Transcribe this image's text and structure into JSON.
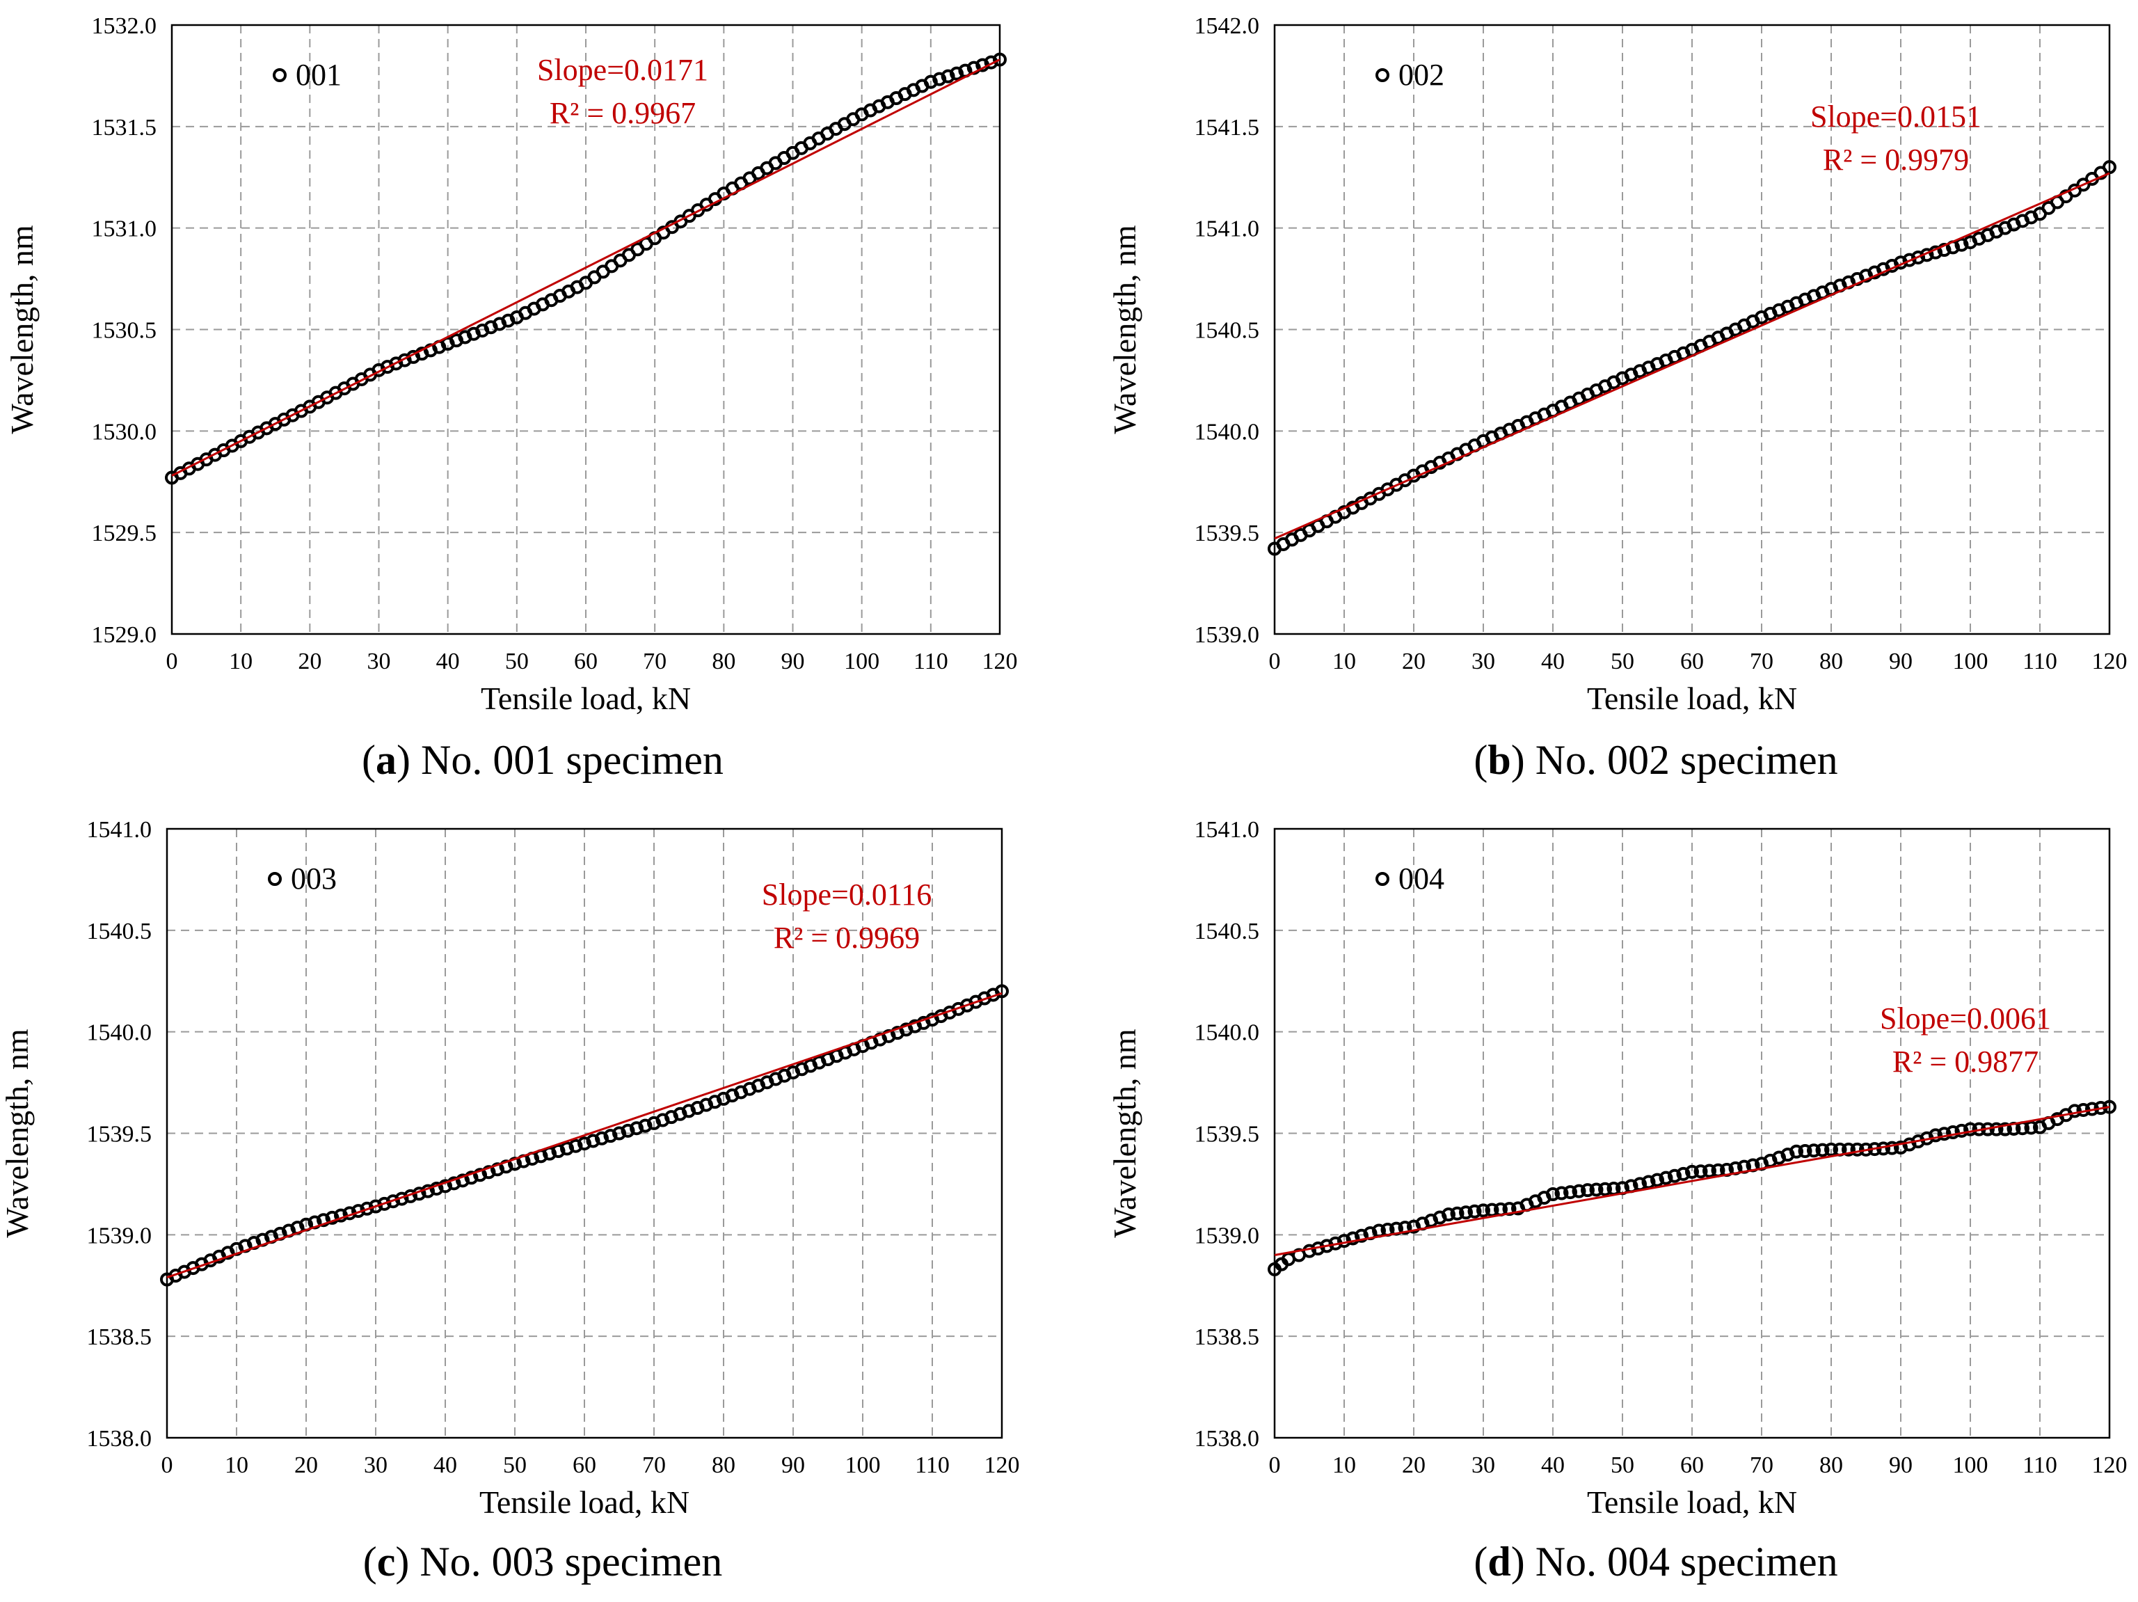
{
  "figure": {
    "captions": [
      {
        "letter": "a",
        "text": "No. 001 specimen"
      },
      {
        "letter": "b",
        "text": "No. 002 specimen"
      },
      {
        "letter": "c",
        "text": "No. 003 specimen"
      },
      {
        "letter": "d",
        "text": "No. 004 specimen"
      }
    ]
  },
  "chart_data": [
    {
      "type": "scatter",
      "xlabel": "Tensile load, kN",
      "ylabel": "Wavelength, nm",
      "xlim": [
        0,
        120
      ],
      "ylim": [
        1529.0,
        1532.0
      ],
      "xticks": [
        0,
        10,
        20,
        30,
        40,
        50,
        60,
        70,
        80,
        90,
        100,
        110,
        120
      ],
      "yticks": [
        1529.0,
        1529.5,
        1530.0,
        1530.5,
        1531.0,
        1531.5,
        1532.0
      ],
      "grid": true,
      "legend": {
        "position": "top-left",
        "label": "001"
      },
      "marker": {
        "shape": "open-circle",
        "color": "#000000"
      },
      "trendline": {
        "color": "#c00000",
        "slope_label": "Slope=0.0171",
        "r2_label": "R² = 0.9967",
        "x": [
          0,
          120
        ],
        "y": [
          1529.78,
          1531.83
        ]
      },
      "series": [
        {
          "name": "001",
          "x": [
            0,
            10,
            20,
            30,
            40,
            50,
            60,
            70,
            80,
            90,
            100,
            110,
            120
          ],
          "y": [
            1529.77,
            1529.95,
            1530.12,
            1530.3,
            1530.43,
            1530.56,
            1530.73,
            1530.95,
            1531.17,
            1531.37,
            1531.56,
            1531.72,
            1531.83
          ]
        }
      ]
    },
    {
      "type": "scatter",
      "xlabel": "Tensile load, kN",
      "ylabel": "Wavelength, nm",
      "xlim": [
        0,
        120
      ],
      "ylim": [
        1539.0,
        1542.0
      ],
      "xticks": [
        0,
        10,
        20,
        30,
        40,
        50,
        60,
        70,
        80,
        90,
        100,
        110,
        120
      ],
      "yticks": [
        1539.0,
        1539.5,
        1540.0,
        1540.5,
        1541.0,
        1541.5,
        1542.0
      ],
      "grid": true,
      "legend": {
        "position": "top-left",
        "label": "002"
      },
      "marker": {
        "shape": "open-circle",
        "color": "#000000"
      },
      "trendline": {
        "color": "#c00000",
        "slope_label": "Slope=0.0151",
        "r2_label": "R² = 0.9979",
        "x": [
          0,
          120
        ],
        "y": [
          1539.47,
          1541.27
        ]
      },
      "series": [
        {
          "name": "002",
          "x": [
            0,
            10,
            20,
            30,
            40,
            50,
            60,
            70,
            80,
            90,
            100,
            110,
            120
          ],
          "y": [
            1539.42,
            1539.6,
            1539.78,
            1539.95,
            1540.1,
            1540.26,
            1540.4,
            1540.56,
            1540.7,
            1540.83,
            1540.93,
            1541.07,
            1541.3
          ]
        }
      ]
    },
    {
      "type": "scatter",
      "xlabel": "Tensile load, kN",
      "ylabel": "Wavelength, nm",
      "xlim": [
        0,
        120
      ],
      "ylim": [
        1538.0,
        1541.0
      ],
      "xticks": [
        0,
        10,
        20,
        30,
        40,
        50,
        60,
        70,
        80,
        90,
        100,
        110,
        120
      ],
      "yticks": [
        1538.0,
        1538.5,
        1539.0,
        1539.5,
        1540.0,
        1540.5,
        1541.0
      ],
      "grid": true,
      "legend": {
        "position": "top-left",
        "label": "003"
      },
      "marker": {
        "shape": "open-circle",
        "color": "#000000"
      },
      "trendline": {
        "color": "#c00000",
        "slope_label": "Slope=0.0116",
        "r2_label": "R² = 0.9969",
        "x": [
          0,
          120
        ],
        "y": [
          1538.79,
          1540.19
        ]
      },
      "series": [
        {
          "name": "003",
          "x": [
            0,
            10,
            20,
            30,
            40,
            50,
            60,
            70,
            80,
            90,
            100,
            110,
            120
          ],
          "y": [
            1538.78,
            1538.93,
            1539.05,
            1539.14,
            1539.24,
            1539.35,
            1539.45,
            1539.55,
            1539.67,
            1539.8,
            1539.93,
            1540.06,
            1540.2
          ]
        }
      ]
    },
    {
      "type": "scatter",
      "xlabel": "Tensile load, kN",
      "ylabel": "Wavelength, nm",
      "xlim": [
        0,
        120
      ],
      "ylim": [
        1538.0,
        1541.0
      ],
      "xticks": [
        0,
        10,
        20,
        30,
        40,
        50,
        60,
        70,
        80,
        90,
        100,
        110,
        120
      ],
      "yticks": [
        1538.0,
        1538.5,
        1539.0,
        1539.5,
        1540.0,
        1540.5,
        1541.0
      ],
      "grid": true,
      "legend": {
        "position": "top-left",
        "label": "004"
      },
      "marker": {
        "shape": "open-circle",
        "color": "#000000"
      },
      "trendline": {
        "color": "#c00000",
        "slope_label": "Slope=0.0061",
        "r2_label": "R² = 0.9877",
        "x": [
          0,
          120
        ],
        "y": [
          1538.9,
          1539.63
        ]
      },
      "series": [
        {
          "name": "004",
          "x": [
            0,
            2,
            5,
            10,
            15,
            20,
            25,
            30,
            35,
            40,
            45,
            50,
            55,
            60,
            65,
            70,
            75,
            80,
            85,
            90,
            95,
            100,
            105,
            110,
            115,
            120
          ],
          "y": [
            1538.83,
            1538.88,
            1538.92,
            1538.97,
            1539.02,
            1539.04,
            1539.1,
            1539.12,
            1539.13,
            1539.2,
            1539.22,
            1539.23,
            1539.27,
            1539.31,
            1539.32,
            1539.35,
            1539.41,
            1539.42,
            1539.42,
            1539.43,
            1539.49,
            1539.52,
            1539.52,
            1539.53,
            1539.61,
            1539.63
          ]
        }
      ]
    }
  ]
}
